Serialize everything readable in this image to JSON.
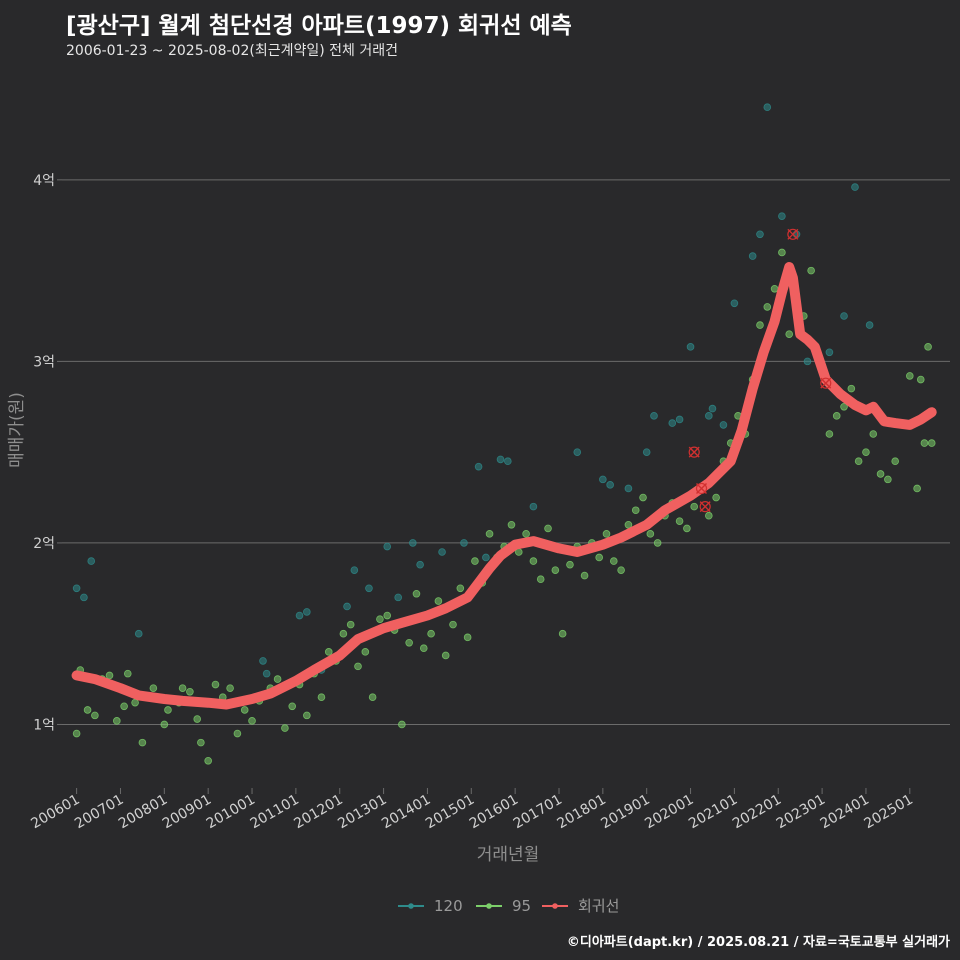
{
  "header": {
    "title": "[광산구] 월계 첨단선경 아파트(1997) 회귀선 예측",
    "subtitle": "2006-01-23 ~ 2025-08-02(최근계약일) 전체 거래건"
  },
  "footer": {
    "text": "©디아파트(dapt.kr) / 2025.08.21 / 자료=국토교통부 실거래가"
  },
  "colors": {
    "s120": "#2e8b8b",
    "s95": "#7ccf6a",
    "regression": "#f06060",
    "grid": "#6b6b6b",
    "text": "#d0d0d0",
    "axis_title": "#8e8e8e"
  },
  "chart_data": {
    "type": "scatter",
    "xlabel": "거래년월",
    "ylabel": "매매가(원)",
    "ylim": [
      0.65,
      4.55
    ],
    "xlim": [
      "2005-09",
      "2025-12"
    ],
    "y_ticks": [
      {
        "value": 1,
        "label": "1억"
      },
      {
        "value": 2,
        "label": "2억"
      },
      {
        "value": 3,
        "label": "3억"
      },
      {
        "value": 4,
        "label": "4억"
      }
    ],
    "x_ticks": [
      "200601",
      "200701",
      "200801",
      "200901",
      "201001",
      "201101",
      "201201",
      "201301",
      "201401",
      "201501",
      "201601",
      "201701",
      "201801",
      "201901",
      "202001",
      "202101",
      "202201",
      "202301",
      "202401",
      "202501"
    ],
    "legend": {
      "placement": "bottom",
      "items": [
        {
          "name": "120",
          "key": "s120"
        },
        {
          "name": "95",
          "key": "s95"
        },
        {
          "name": "회귀선",
          "key": "regression"
        }
      ]
    },
    "series": [
      {
        "name": "120",
        "key": "s120",
        "points": [
          [
            "2006-01",
            1.75
          ],
          [
            "2006-03",
            1.7
          ],
          [
            "2006-05",
            1.9
          ],
          [
            "2007-06",
            1.5
          ],
          [
            "2010-04",
            1.35
          ],
          [
            "2010-05",
            1.28
          ],
          [
            "2011-02",
            1.6
          ],
          [
            "2011-04",
            1.62
          ],
          [
            "2011-08",
            1.3
          ],
          [
            "2012-03",
            1.65
          ],
          [
            "2012-05",
            1.85
          ],
          [
            "2012-09",
            1.75
          ],
          [
            "2013-02",
            1.98
          ],
          [
            "2013-05",
            1.7
          ],
          [
            "2013-09",
            2.0
          ],
          [
            "2013-11",
            1.88
          ],
          [
            "2014-05",
            1.95
          ],
          [
            "2014-11",
            2.0
          ],
          [
            "2015-03",
            2.42
          ],
          [
            "2015-05",
            1.92
          ],
          [
            "2015-09",
            2.46
          ],
          [
            "2015-11",
            2.45
          ],
          [
            "2016-06",
            2.2
          ],
          [
            "2017-06",
            2.5
          ],
          [
            "2018-01",
            2.35
          ],
          [
            "2018-03",
            2.32
          ],
          [
            "2018-08",
            2.3
          ],
          [
            "2019-01",
            2.5
          ],
          [
            "2019-03",
            2.7
          ],
          [
            "2019-08",
            2.66
          ],
          [
            "2019-10",
            2.68
          ],
          [
            "2020-01",
            3.08
          ],
          [
            "2020-06",
            2.7
          ],
          [
            "2020-07",
            2.74
          ],
          [
            "2020-10",
            2.65
          ],
          [
            "2021-01",
            3.32
          ],
          [
            "2021-06",
            3.58
          ],
          [
            "2021-08",
            3.7
          ],
          [
            "2021-10",
            4.4
          ],
          [
            "2022-02",
            3.8
          ],
          [
            "2022-06",
            3.7
          ],
          [
            "2022-09",
            3.0
          ],
          [
            "2023-03",
            3.05
          ],
          [
            "2023-07",
            3.25
          ],
          [
            "2023-10",
            3.96
          ],
          [
            "2024-02",
            3.2
          ]
        ]
      },
      {
        "name": "95",
        "key": "s95",
        "points": [
          [
            "2006-01",
            0.95
          ],
          [
            "2006-02",
            1.3
          ],
          [
            "2006-04",
            1.08
          ],
          [
            "2006-06",
            1.05
          ],
          [
            "2006-08",
            1.25
          ],
          [
            "2006-10",
            1.27
          ],
          [
            "2006-12",
            1.02
          ],
          [
            "2007-02",
            1.1
          ],
          [
            "2007-03",
            1.28
          ],
          [
            "2007-05",
            1.12
          ],
          [
            "2007-07",
            0.9
          ],
          [
            "2007-10",
            1.2
          ],
          [
            "2008-01",
            1.0
          ],
          [
            "2008-02",
            1.08
          ],
          [
            "2008-05",
            1.12
          ],
          [
            "2008-06",
            1.2
          ],
          [
            "2008-08",
            1.18
          ],
          [
            "2008-10",
            1.03
          ],
          [
            "2008-11",
            0.9
          ],
          [
            "2009-01",
            0.8
          ],
          [
            "2009-03",
            1.22
          ],
          [
            "2009-05",
            1.15
          ],
          [
            "2009-07",
            1.2
          ],
          [
            "2009-09",
            0.95
          ],
          [
            "2009-11",
            1.08
          ],
          [
            "2010-01",
            1.02
          ],
          [
            "2010-03",
            1.13
          ],
          [
            "2010-06",
            1.2
          ],
          [
            "2010-08",
            1.25
          ],
          [
            "2010-10",
            0.98
          ],
          [
            "2010-12",
            1.1
          ],
          [
            "2011-02",
            1.22
          ],
          [
            "2011-04",
            1.05
          ],
          [
            "2011-06",
            1.28
          ],
          [
            "2011-08",
            1.15
          ],
          [
            "2011-10",
            1.4
          ],
          [
            "2011-12",
            1.35
          ],
          [
            "2012-02",
            1.5
          ],
          [
            "2012-04",
            1.55
          ],
          [
            "2012-06",
            1.32
          ],
          [
            "2012-08",
            1.4
          ],
          [
            "2012-10",
            1.15
          ],
          [
            "2012-12",
            1.58
          ],
          [
            "2013-02",
            1.6
          ],
          [
            "2013-04",
            1.52
          ],
          [
            "2013-06",
            1.0
          ],
          [
            "2013-08",
            1.45
          ],
          [
            "2013-10",
            1.72
          ],
          [
            "2013-12",
            1.42
          ],
          [
            "2014-02",
            1.5
          ],
          [
            "2014-04",
            1.68
          ],
          [
            "2014-06",
            1.38
          ],
          [
            "2014-08",
            1.55
          ],
          [
            "2014-10",
            1.75
          ],
          [
            "2014-12",
            1.48
          ],
          [
            "2015-02",
            1.9
          ],
          [
            "2015-04",
            1.78
          ],
          [
            "2015-06",
            2.05
          ],
          [
            "2015-08",
            1.92
          ],
          [
            "2015-10",
            1.98
          ],
          [
            "2015-12",
            2.1
          ],
          [
            "2016-02",
            1.95
          ],
          [
            "2016-04",
            2.05
          ],
          [
            "2016-06",
            1.9
          ],
          [
            "2016-08",
            1.8
          ],
          [
            "2016-10",
            2.08
          ],
          [
            "2016-12",
            1.85
          ],
          [
            "2017-02",
            1.5
          ],
          [
            "2017-04",
            1.88
          ],
          [
            "2017-06",
            1.98
          ],
          [
            "2017-08",
            1.82
          ],
          [
            "2017-10",
            2.0
          ],
          [
            "2017-12",
            1.92
          ],
          [
            "2018-02",
            2.05
          ],
          [
            "2018-04",
            1.9
          ],
          [
            "2018-06",
            1.85
          ],
          [
            "2018-08",
            2.1
          ],
          [
            "2018-10",
            2.18
          ],
          [
            "2018-12",
            2.25
          ],
          [
            "2019-02",
            2.05
          ],
          [
            "2019-04",
            2.0
          ],
          [
            "2019-06",
            2.15
          ],
          [
            "2019-08",
            2.22
          ],
          [
            "2019-10",
            2.12
          ],
          [
            "2019-12",
            2.08
          ],
          [
            "2020-02",
            2.2
          ],
          [
            "2020-04",
            2.3
          ],
          [
            "2020-06",
            2.15
          ],
          [
            "2020-08",
            2.25
          ],
          [
            "2020-10",
            2.45
          ],
          [
            "2020-12",
            2.55
          ],
          [
            "2021-02",
            2.7
          ],
          [
            "2021-04",
            2.6
          ],
          [
            "2021-06",
            2.9
          ],
          [
            "2021-08",
            3.2
          ],
          [
            "2021-10",
            3.3
          ],
          [
            "2021-12",
            3.4
          ],
          [
            "2022-02",
            3.6
          ],
          [
            "2022-04",
            3.15
          ],
          [
            "2022-06",
            3.3
          ],
          [
            "2022-08",
            3.25
          ],
          [
            "2022-10",
            3.5
          ],
          [
            "2023-01",
            2.98
          ],
          [
            "2023-03",
            2.6
          ],
          [
            "2023-05",
            2.7
          ],
          [
            "2023-07",
            2.75
          ],
          [
            "2023-09",
            2.85
          ],
          [
            "2023-11",
            2.45
          ],
          [
            "2024-01",
            2.5
          ],
          [
            "2024-03",
            2.6
          ],
          [
            "2024-05",
            2.38
          ],
          [
            "2024-07",
            2.35
          ],
          [
            "2024-09",
            2.45
          ],
          [
            "2024-11",
            2.65
          ],
          [
            "2025-01",
            2.92
          ],
          [
            "2025-03",
            2.3
          ],
          [
            "2025-04",
            2.9
          ],
          [
            "2025-05",
            2.55
          ],
          [
            "2025-06",
            3.08
          ],
          [
            "2025-07",
            2.55
          ]
        ]
      }
    ],
    "outliers": [
      {
        "x": "2020-02",
        "y": 2.5
      },
      {
        "x": "2020-04",
        "y": 2.3
      },
      {
        "x": "2020-05",
        "y": 2.2
      },
      {
        "x": "2022-05",
        "y": 3.7
      },
      {
        "x": "2023-02",
        "y": 2.88
      }
    ],
    "regression": {
      "name": "회귀선",
      "points": [
        [
          "2006-01",
          1.27
        ],
        [
          "2006-06",
          1.25
        ],
        [
          "2007-01",
          1.2
        ],
        [
          "2007-06",
          1.16
        ],
        [
          "2008-01",
          1.14
        ],
        [
          "2008-06",
          1.13
        ],
        [
          "2009-01",
          1.12
        ],
        [
          "2009-06",
          1.11
        ],
        [
          "2010-01",
          1.14
        ],
        [
          "2010-06",
          1.17
        ],
        [
          "2011-01",
          1.24
        ],
        [
          "2011-06",
          1.3
        ],
        [
          "2012-01",
          1.38
        ],
        [
          "2012-06",
          1.47
        ],
        [
          "2013-01",
          1.53
        ],
        [
          "2013-06",
          1.56
        ],
        [
          "2014-01",
          1.6
        ],
        [
          "2014-06",
          1.64
        ],
        [
          "2014-12",
          1.7
        ],
        [
          "2015-03",
          1.78
        ],
        [
          "2015-06",
          1.86
        ],
        [
          "2015-09",
          1.93
        ],
        [
          "2016-01",
          1.99
        ],
        [
          "2016-06",
          2.01
        ],
        [
          "2017-01",
          1.97
        ],
        [
          "2017-06",
          1.95
        ],
        [
          "2018-01",
          1.99
        ],
        [
          "2018-06",
          2.03
        ],
        [
          "2019-01",
          2.1
        ],
        [
          "2019-06",
          2.18
        ],
        [
          "2020-01",
          2.26
        ],
        [
          "2020-06",
          2.33
        ],
        [
          "2020-12",
          2.45
        ],
        [
          "2021-03",
          2.62
        ],
        [
          "2021-06",
          2.85
        ],
        [
          "2021-09",
          3.05
        ],
        [
          "2021-12",
          3.22
        ],
        [
          "2022-02",
          3.38
        ],
        [
          "2022-04",
          3.52
        ],
        [
          "2022-05",
          3.46
        ],
        [
          "2022-07",
          3.15
        ],
        [
          "2022-09",
          3.12
        ],
        [
          "2022-11",
          3.08
        ],
        [
          "2023-02",
          2.9
        ],
        [
          "2023-06",
          2.82
        ],
        [
          "2023-10",
          2.76
        ],
        [
          "2024-01",
          2.73
        ],
        [
          "2024-03",
          2.75
        ],
        [
          "2024-06",
          2.67
        ],
        [
          "2024-09",
          2.66
        ],
        [
          "2025-01",
          2.65
        ],
        [
          "2025-04",
          2.68
        ],
        [
          "2025-07",
          2.72
        ]
      ]
    }
  }
}
